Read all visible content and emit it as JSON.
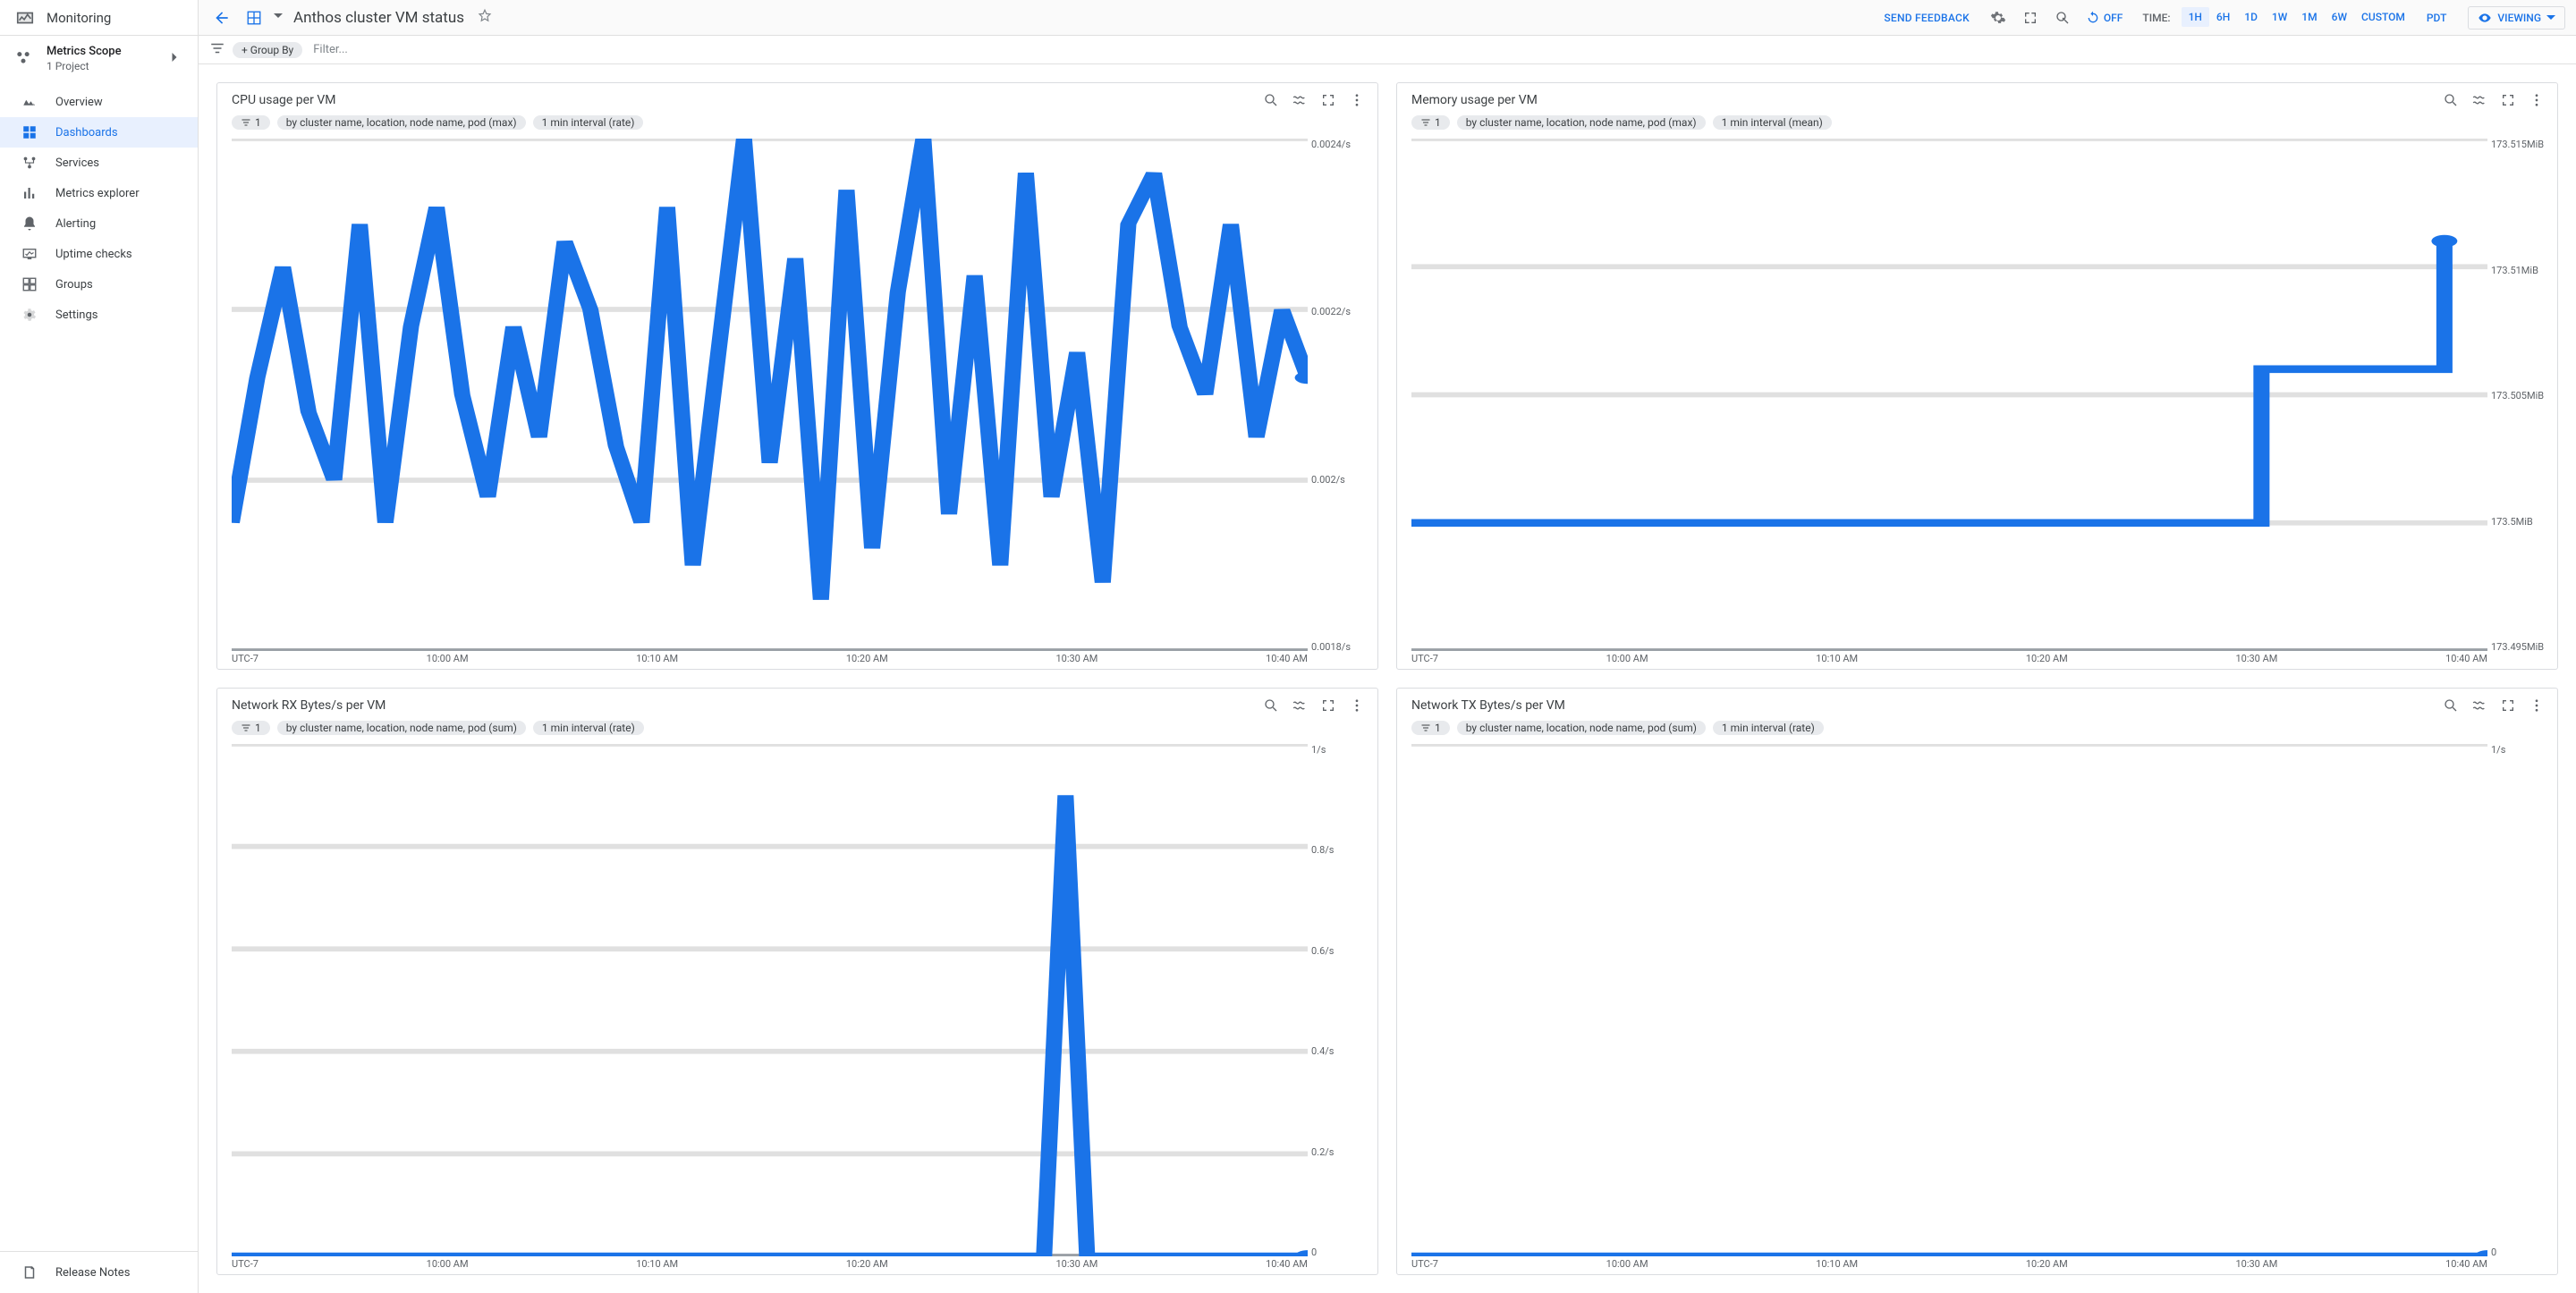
{
  "colors": {
    "accent": "#1a73e8",
    "grid": "#e0e0e0",
    "axis": "#9aa0a6",
    "text_muted": "#5f6368",
    "bg": "#ffffff"
  },
  "sidebar": {
    "product": "Monitoring",
    "scope": {
      "title": "Metrics Scope",
      "subtitle": "1 Project"
    },
    "nav": [
      {
        "id": "overview",
        "label": "Overview"
      },
      {
        "id": "dashboards",
        "label": "Dashboards",
        "active": true
      },
      {
        "id": "services",
        "label": "Services"
      },
      {
        "id": "metrics-explorer",
        "label": "Metrics explorer"
      },
      {
        "id": "alerting",
        "label": "Alerting"
      },
      {
        "id": "uptime",
        "label": "Uptime checks"
      },
      {
        "id": "groups",
        "label": "Groups"
      },
      {
        "id": "settings",
        "label": "Settings"
      }
    ],
    "footer_label": "Release Notes"
  },
  "topbar": {
    "title": "Anthos cluster VM status",
    "send_feedback": "SEND FEEDBACK",
    "auto": "OFF",
    "time_label": "TIME:",
    "time_ranges": [
      "1H",
      "6H",
      "1D",
      "1W",
      "1M",
      "6W",
      "CUSTOM"
    ],
    "time_active": "1H",
    "tz": "PDT",
    "viewing": "VIEWING"
  },
  "filterbar": {
    "group_by": "+ Group By",
    "filter_placeholder": "Filter..."
  },
  "chips": {
    "one": "1",
    "agg_max": "by cluster name, location, node name, pod (max)",
    "agg_sum": "by cluster name, location, node name, pod (sum)",
    "int_rate": "1 min interval (rate)",
    "int_mean": "1 min interval (mean)"
  },
  "x_labels": [
    "UTC-7",
    "10:00 AM",
    "10:10 AM",
    "10:20 AM",
    "10:30 AM",
    "10:40 AM"
  ],
  "panels": {
    "cpu": {
      "title": "CPU usage per VM",
      "chips": [
        "one",
        "agg_max",
        "int_rate"
      ],
      "ydomain": [
        0.0018,
        0.0024
      ],
      "y_ticks": [
        0.0024,
        0.0022,
        0.002,
        0.0018
      ],
      "y_labels": [
        "0.0024/s",
        "0.0022/s",
        "0.002/s",
        "0.0018/s"
      ],
      "series": [
        0.00195,
        0.00212,
        0.00225,
        0.00208,
        0.002,
        0.0023,
        0.00195,
        0.00218,
        0.00232,
        0.0021,
        0.00198,
        0.00218,
        0.00205,
        0.00228,
        0.0022,
        0.00204,
        0.00195,
        0.00232,
        0.0019,
        0.00215,
        0.0024,
        0.00202,
        0.00226,
        0.00186,
        0.00234,
        0.00192,
        0.00222,
        0.0024,
        0.00196,
        0.00224,
        0.0019,
        0.00236,
        0.00198,
        0.00215,
        0.00188,
        0.0023,
        0.00236,
        0.00218,
        0.0021,
        0.0023,
        0.00205,
        0.0022,
        0.00212
      ],
      "end_dot": true
    },
    "memory": {
      "title": "Memory usage per VM",
      "chips": [
        "one",
        "agg_max",
        "int_mean"
      ],
      "ydomain": [
        173.495,
        173.515
      ],
      "y_ticks": [
        173.515,
        173.51,
        173.505,
        173.5,
        173.495
      ],
      "y_labels": [
        "173.515MiB",
        "173.51MiB",
        "173.505MiB",
        "173.5MiB",
        "173.495MiB"
      ],
      "series_type": "step",
      "series_points": [
        [
          0,
          173.5
        ],
        [
          0.79,
          173.5
        ],
        [
          0.79,
          173.506
        ],
        [
          0.96,
          173.506
        ],
        [
          0.96,
          173.511
        ]
      ],
      "end_dot": true
    },
    "net_rx": {
      "title": "Network RX Bytes/s per VM",
      "chips": [
        "one",
        "agg_sum",
        "int_rate"
      ],
      "ydomain": [
        0,
        1
      ],
      "y_ticks": [
        1,
        0.8,
        0.6,
        0.4,
        0.2,
        0
      ],
      "y_labels": [
        "1/s",
        "0.8/s",
        "0.6/s",
        "0.4/s",
        "0.2/s",
        "0"
      ],
      "series_type": "spike",
      "spike": {
        "x": 0.775,
        "width": 0.02,
        "peak": 0.9
      },
      "end_dot": true
    },
    "net_tx": {
      "title": "Network TX Bytes/s per VM",
      "chips": [
        "one",
        "agg_sum",
        "int_rate"
      ],
      "ydomain": [
        0,
        1
      ],
      "y_ticks": [
        1,
        0
      ],
      "y_labels": [
        "1/s",
        "0"
      ],
      "series_type": "flat",
      "flat_value": 0,
      "end_dot": true
    }
  }
}
